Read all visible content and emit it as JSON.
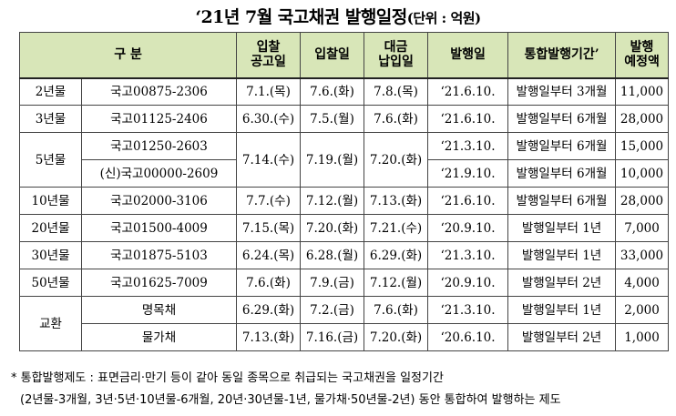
{
  "title": {
    "main": "‘21년 7월 국고채권 발행일정",
    "unit": "(단위 : 억원)"
  },
  "headers": {
    "category": "구 분",
    "notice_date": [
      "입찰",
      "공고일"
    ],
    "auction_date": "입찰일",
    "payment_date": [
      "대금",
      "납입일"
    ],
    "issue_date": "발행일",
    "consolidation_period": "통합발행기간’",
    "planned_amount": [
      "발행",
      "예정액"
    ]
  },
  "rows": [
    {
      "maturity": "2년물",
      "code": "국고00875-2306",
      "notice": "7.1.(목)",
      "auction": "7.6.(화)",
      "payment": "7.8.(목)",
      "issue": "‘21.6.10.",
      "period": "발행일부터 3개월",
      "amount": "11,000"
    },
    {
      "maturity": "3년물",
      "code": "국고01125-2406",
      "notice": "6.30.(수)",
      "auction": "7.5.(월)",
      "payment": "7.6.(화)",
      "issue": "‘21.6.10.",
      "period": "발행일부터 6개월",
      "amount": "28,000"
    },
    {
      "maturity": "5년물",
      "code": "국고01250-2603",
      "notice": "7.14.(수)",
      "auction": "7.19.(월)",
      "payment": "7.20.(화)",
      "issue": "‘21.3.10.",
      "period": "발행일부터 6개월",
      "amount": "15,000"
    },
    {
      "maturity": "",
      "code": "(신)국고00000-2609",
      "notice": "",
      "auction": "",
      "payment": "",
      "issue": "‘21.9.10.",
      "period": "발행일부터 6개월",
      "amount": "10,000"
    },
    {
      "maturity": "10년물",
      "code": "국고02000-3106",
      "notice": "7.7.(수)",
      "auction": "7.12.(월)",
      "payment": "7.13.(화)",
      "issue": "‘21.6.10.",
      "period": "발행일부터 6개월",
      "amount": "28,000"
    },
    {
      "maturity": "20년물",
      "code": "국고01500-4009",
      "notice": "7.15.(목)",
      "auction": "7.20.(화)",
      "payment": "7.21.(수)",
      "issue": "‘20.9.10.",
      "period": "발행일부터 1년",
      "amount": "7,000"
    },
    {
      "maturity": "30년물",
      "code": "국고01875-5103",
      "notice": "6.24.(목)",
      "auction": "6.28.(월)",
      "payment": "6.29.(화)",
      "issue": "‘21.3.10.",
      "period": "발행일부터 1년",
      "amount": "33,000"
    },
    {
      "maturity": "50년물",
      "code": "국고01625-7009",
      "notice": "7.6.(화)",
      "auction": "7.9.(금)",
      "payment": "7.12.(월)",
      "issue": "‘20.9.10.",
      "period": "발행일부터 2년",
      "amount": "4,000"
    },
    {
      "maturity": "교환",
      "code": "명목채",
      "notice": "6.29.(화)",
      "auction": "7.2.(금)",
      "payment": "7.6.(화)",
      "issue": "‘21.3.10.",
      "period": "발행일부터 1년",
      "amount": "2,000"
    },
    {
      "maturity": "",
      "code": "물가채",
      "notice": "7.13.(화)",
      "auction": "7.16.(금)",
      "payment": "7.20.(화)",
      "issue": "‘20.6.10.",
      "period": "발행일부터 2년",
      "amount": "1,000"
    }
  ],
  "notes": {
    "line1": "* 통합발행제도 : 표면금리·만기 등이 같아 동일 종목으로 취급되는 국고채권을 일정기간",
    "line2": "(2년물-3개월, 3년·5년·10년물-6개월, 20년·30년물-1년, 물가채·50년물-2년) 동안 통합하여 발행하는 제도"
  }
}
